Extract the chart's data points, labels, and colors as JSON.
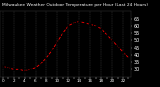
{
  "hours": [
    0,
    1,
    2,
    3,
    4,
    5,
    6,
    7,
    8,
    9,
    10,
    11,
    12,
    13,
    14,
    15,
    16,
    17,
    18,
    19,
    20,
    21,
    22,
    23
  ],
  "temps": [
    32,
    31,
    30,
    30,
    29,
    30,
    31,
    34,
    38,
    43,
    49,
    55,
    60,
    62,
    63,
    62,
    61,
    60,
    58,
    54,
    50,
    46,
    42,
    38
  ],
  "line_color": "#ff0000",
  "marker_color": "#000000",
  "bg_color": "#000000",
  "plot_bg": "#000000",
  "grid_color": "#606060",
  "title": "Milwaukee Weather Outdoor Temperature per Hour (Last 24 Hours)",
  "title_color": "#ffffff",
  "tick_color": "#ffffff",
  "ylim": [
    25,
    70
  ],
  "yticks": [
    30,
    35,
    40,
    45,
    50,
    55,
    60,
    65
  ],
  "ylabel_fontsize": 3.5,
  "title_fontsize": 3.2,
  "tick_fontsize": 3.0,
  "right_bar_color": "#000000",
  "right_bar_width": 10
}
